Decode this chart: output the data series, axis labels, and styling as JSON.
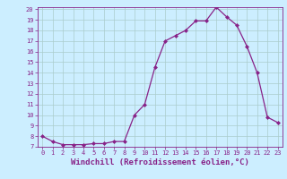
{
  "x": [
    0,
    1,
    2,
    3,
    4,
    5,
    6,
    7,
    8,
    9,
    10,
    11,
    12,
    13,
    14,
    15,
    16,
    17,
    18,
    19,
    20,
    21,
    22,
    23
  ],
  "y": [
    8.0,
    7.5,
    7.2,
    7.2,
    7.2,
    7.3,
    7.3,
    7.5,
    7.5,
    10.0,
    11.0,
    14.5,
    17.0,
    17.5,
    18.0,
    18.9,
    18.9,
    20.2,
    19.3,
    18.5,
    16.5,
    14.0,
    9.8,
    9.3
  ],
  "line_color": "#882288",
  "marker": "D",
  "marker_size": 2,
  "bg_color": "#cceeff",
  "grid_color": "#aacccc",
  "xlabel": "Windchill (Refroidissement éolien,°C)",
  "ylim": [
    7,
    20
  ],
  "xlim_min": -0.5,
  "xlim_max": 23.5,
  "yticks": [
    7,
    8,
    9,
    10,
    11,
    12,
    13,
    14,
    15,
    16,
    17,
    18,
    19,
    20
  ],
  "xticks": [
    0,
    1,
    2,
    3,
    4,
    5,
    6,
    7,
    8,
    9,
    10,
    11,
    12,
    13,
    14,
    15,
    16,
    17,
    18,
    19,
    20,
    21,
    22,
    23
  ],
  "tick_color": "#882288",
  "tick_fontsize": 5,
  "xlabel_fontsize": 6.5,
  "xlabel_color": "#882288",
  "spine_color": "#882288"
}
